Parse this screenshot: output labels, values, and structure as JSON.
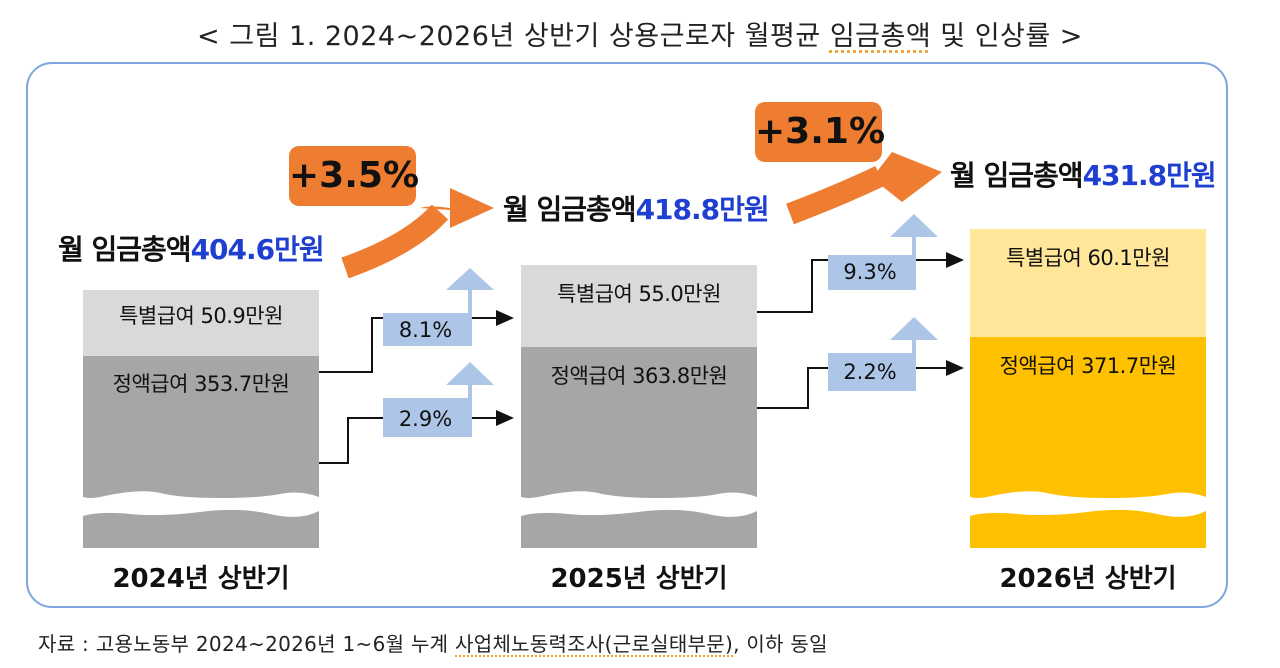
{
  "title": {
    "prefix": "< 그림 1. 2024~2026년 상반기 상용근로자 월평균 ",
    "underlined": "임금총액",
    "suffix": " 및 인상률 >"
  },
  "periods": [
    {
      "year_label": "2024년 상반기",
      "total_label": "월 임금총액",
      "total_value": "404.6만원",
      "special_label": "특별급여 50.9만원",
      "regular_label": "정액급여 353.7만원"
    },
    {
      "year_label": "2025년 상반기",
      "total_label": "월 임금총액",
      "total_value": "418.8만원",
      "special_label": "특별급여 55.0만원",
      "regular_label": "정액급여 363.8만원"
    },
    {
      "year_label": "2026년 상반기",
      "total_label": "월 임금총액",
      "total_value": "431.8만원",
      "special_label": "특별급여 60.1만원",
      "regular_label": "정액급여 371.7만원"
    }
  ],
  "total_growth": [
    "+3.5%",
    "+3.1%"
  ],
  "component_growth": [
    {
      "special": "8.1%",
      "regular": "2.9%"
    },
    {
      "special": "9.3%",
      "regular": "2.2%"
    }
  ],
  "colors": {
    "special_2024_25": "#d9d9d9",
    "regular_2024_25": "#a6a6a6",
    "special_2026": "#ffe699",
    "regular_2026": "#ffc000",
    "growth_arrow": "#ee7d31",
    "small_arrow": "#adc6e8",
    "total_value": "#1f3fd0",
    "panel_border": "#7ea6dc"
  },
  "source": {
    "prefix": "자료 : 고용노동부 2024~2026년 1~6월 누계 ",
    "underlined": "사업체노동력조사(근로실태부문)",
    "suffix": ", 이하 동일"
  }
}
